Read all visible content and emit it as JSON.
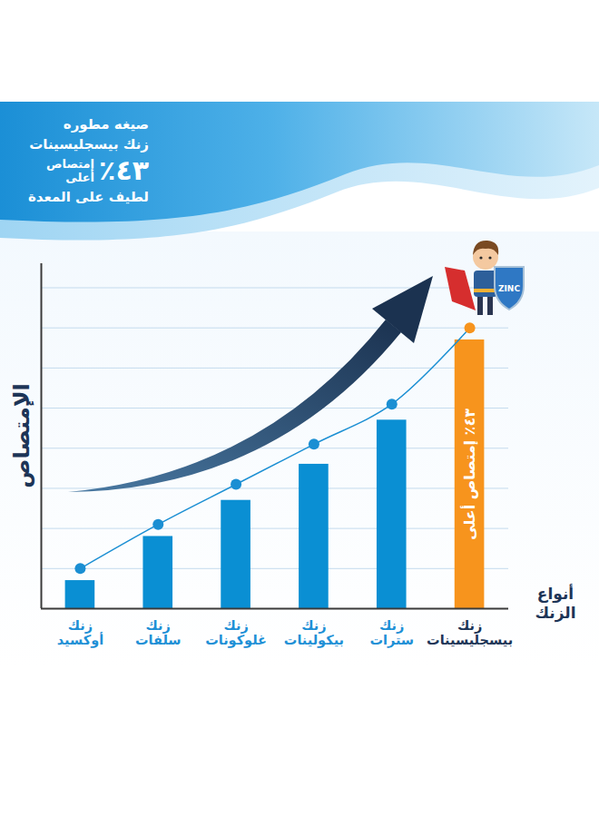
{
  "chart_data": {
    "type": "bar",
    "title": "صيغه مطوره",
    "subtitle": "زنك بيسجليسينات",
    "callout": {
      "number": "٤٣٪",
      "text": "إمتصاص أعلى"
    },
    "caption": "لطيف على المعدة",
    "badge": "ZINC",
    "x_label": "أنواع الزنك",
    "y_label": "الإمتصاص",
    "categories": [
      "زنك أوكسيد",
      "زنك سلفات",
      "زنك غلوكونات",
      "زنك بيكولينات",
      "زنك سترات",
      "زنك بيسجليسينات"
    ],
    "series": [
      {
        "type": "bar",
        "colors": [
          "#0a8fd3",
          "#0a8fd3",
          "#0a8fd3",
          "#0a8fd3",
          "#0a8fd3",
          "#f7941d"
        ],
        "values": [
          0.7,
          1.8,
          2.7,
          3.6,
          4.7,
          6.7
        ]
      },
      {
        "type": "line",
        "color": "#1b8fd3",
        "marker": "circle",
        "colors": [
          "#1b8fd3",
          "#1b8fd3",
          "#1b8fd3",
          "#1b8fd3",
          "#1b8fd3",
          "#f7941d"
        ],
        "values": [
          1.0,
          2.1,
          3.1,
          4.1,
          5.1,
          7.0
        ]
      }
    ],
    "annotations": [
      {
        "text": "٤٣٪ إمتصاص أعلى",
        "category": "زنك بيسجليسينات"
      }
    ],
    "ylim": [
      0,
      8.6
    ],
    "yticks": [
      0,
      1,
      2,
      3,
      4,
      5,
      6,
      7,
      8
    ],
    "grid": true,
    "tick_labels": false
  }
}
